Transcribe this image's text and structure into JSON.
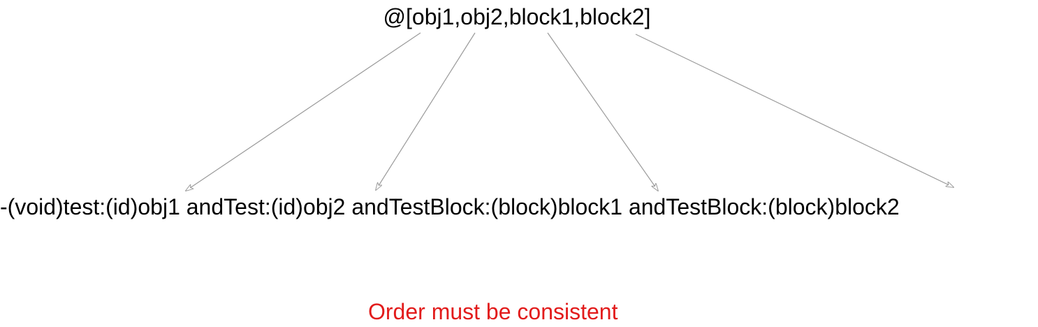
{
  "diagram": {
    "array_expression": "@[obj1,obj2,block1,block2]",
    "method_signature": "-(void)test:(id)obj1 andTest:(id)obj2 andTestBlock:(block)block1 andTestBlock:(block)block2",
    "note": "Order must be consistent",
    "colors": {
      "text": "#000000",
      "note": "#e21b1b",
      "arrow": "#9a9a9a"
    }
  }
}
